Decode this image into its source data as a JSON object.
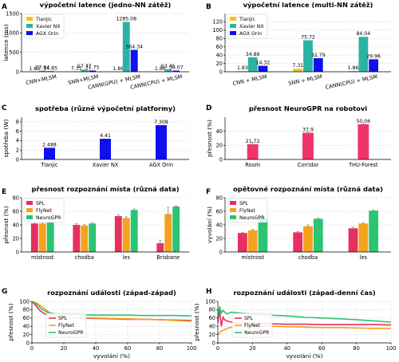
{
  "colors": {
    "tianjic": "#f5c518",
    "xavier": "#2ab3a3",
    "orin": "#1010ee",
    "spl": "#e8305f",
    "flynet": "#f5a21c",
    "neurogpr": "#2bc472",
    "neuro_bar": "#f0336a",
    "errorbar": "#888888"
  },
  "chart_data": [
    {
      "id": "A",
      "type": "bar",
      "panel_label": "A",
      "title": "výpočetní latence (jedno-NN zátěž)",
      "ylabel": "latence (ms)",
      "ylim": [
        0,
        1500
      ],
      "yticks": [
        0,
        500,
        1000,
        1500
      ],
      "categories": [
        "CNN+MLSM",
        "SNN+MLSM",
        "CANN(GPU) + MLSM",
        "CANN(CPU) + MLSM"
      ],
      "series": [
        {
          "name": "Tianjic",
          "color_key": "tianjic",
          "values": [
            1.83,
            7.31,
            1.86,
            1.86
          ]
        },
        {
          "name": "Xavier NX",
          "color_key": "xavier",
          "values": [
            27.64,
            57.77,
            1285.08,
            63.45
          ]
        },
        {
          "name": "AGX Orin",
          "color_key": "orin",
          "values": [
            14.85,
            31.75,
            564.34,
            30.07
          ]
        }
      ],
      "value_labels": [
        [
          "1.83",
          "27.64",
          "14.85"
        ],
        [
          "7.31",
          "57.77",
          "31.75"
        ],
        [
          "1.86",
          "1285.08",
          "564.34"
        ],
        [
          "1.86",
          "63.45",
          "30.07"
        ]
      ],
      "legend": "top-left",
      "grid": true
    },
    {
      "id": "B",
      "type": "bar",
      "panel_label": "B",
      "title": "výpočetní latence (multi-NN zátěž)",
      "ylabel": "",
      "ylim": [
        0,
        140
      ],
      "yticks": [
        0,
        20,
        40,
        60,
        80,
        100,
        120
      ],
      "categories": [
        "CNN + MLSM",
        "SNN + MLSM",
        "CANN(CPU) + MLSM"
      ],
      "series": [
        {
          "name": "Tianjic",
          "color_key": "tianjic",
          "values": [
            1.83,
            7.31,
            1.86
          ]
        },
        {
          "name": "Xavier NX",
          "color_key": "xavier",
          "values": [
            34.86,
            75.72,
            84.04
          ]
        },
        {
          "name": "AGX Orin",
          "color_key": "orin",
          "values": [
            14.32,
            32.79,
            29.96
          ]
        }
      ],
      "value_labels": [
        [
          "1.83",
          "34.86",
          "14.32"
        ],
        [
          "7.31",
          "75.72",
          "32.79"
        ],
        [
          "1.86",
          "84.04",
          "29.96"
        ]
      ],
      "legend": "top-left",
      "grid": true
    },
    {
      "id": "C",
      "type": "bar",
      "panel_label": "C",
      "title": "spotřeba (různé výpočetní platformy)",
      "ylabel": "spotřeba (W)",
      "ylim": [
        0,
        9
      ],
      "yticks": [
        0,
        2,
        4,
        6,
        8
      ],
      "categories": [
        "Tianjic",
        "Xavier NX",
        "AGX Orin"
      ],
      "values": [
        2.488,
        4.41,
        7.308
      ],
      "value_labels": [
        "2.488",
        "4.41",
        "7.308"
      ],
      "color_key": "orin",
      "grid": true
    },
    {
      "id": "D",
      "type": "bar",
      "panel_label": "D",
      "title": "přesnost NeuroGPR na robotovi",
      "ylabel": "přesnost (%)",
      "ylim": [
        0,
        60
      ],
      "yticks": [
        0,
        20,
        40
      ],
      "categories": [
        "Room",
        "Corridor",
        "THU-Forest"
      ],
      "values": [
        21.72,
        37.9,
        50.06
      ],
      "value_labels": [
        "21.72",
        "37.9",
        "50.06"
      ],
      "errors": [
        2.0,
        1.2,
        1.0
      ],
      "color_key": "neuro_bar",
      "grid": true
    },
    {
      "id": "E",
      "type": "bar",
      "panel_label": "E",
      "title": "přesnost rozpoznání místa (různá data)",
      "ylabel": "přesnost (%)",
      "ylim": [
        0,
        80
      ],
      "yticks": [
        0,
        20,
        40,
        60,
        80
      ],
      "categories": [
        "místnost",
        "chodba",
        "les",
        "Brisbane"
      ],
      "series": [
        {
          "name": "SPL",
          "color_key": "spl",
          "values": [
            42,
            40,
            53,
            13
          ],
          "errors": [
            1.5,
            2,
            2,
            4
          ]
        },
        {
          "name": "FlyNet",
          "color_key": "flynet",
          "values": [
            42,
            39,
            50,
            56
          ],
          "errors": [
            1.5,
            1.5,
            2,
            10
          ]
        },
        {
          "name": "NeuroGPR",
          "color_key": "neurogpr",
          "values": [
            44,
            42,
            62,
            67
          ],
          "errors": [
            1.5,
            1.5,
            1.5,
            1
          ]
        }
      ],
      "legend": "top-left",
      "grid": true
    },
    {
      "id": "F",
      "type": "bar",
      "panel_label": "F",
      "title": "opětovné rozpoznání místa (různá data)",
      "ylabel": "vyvolání (%)",
      "ylim": [
        0,
        80
      ],
      "yticks": [
        0,
        20,
        40,
        60,
        80
      ],
      "categories": [
        "místnost",
        "chodba",
        "les"
      ],
      "series": [
        {
          "name": "SPL",
          "color_key": "spl",
          "values": [
            28,
            29,
            35
          ],
          "errors": [
            1,
            1,
            1.5
          ]
        },
        {
          "name": "FlyNet",
          "color_key": "flynet",
          "values": [
            32,
            38,
            42
          ],
          "errors": [
            1.5,
            2,
            1
          ]
        },
        {
          "name": "NeuroGPR",
          "color_key": "neurogpr",
          "values": [
            51,
            49,
            61
          ],
          "errors": [
            2,
            1,
            1
          ]
        }
      ],
      "legend": "top-left",
      "grid": true
    },
    {
      "id": "G",
      "type": "line",
      "panel_label": "G",
      "title": "rozpoznání události (západ-západ)",
      "xlabel": "vyvolání (%)",
      "ylabel": "přesnost (%)",
      "xlim": [
        0,
        100
      ],
      "ylim": [
        0,
        100
      ],
      "xticks": [
        0,
        20,
        40,
        60,
        80,
        100
      ],
      "yticks": [
        0,
        20,
        40,
        60,
        80,
        100
      ],
      "series": [
        {
          "name": "SPL",
          "color_key": "spl",
          "x": [
            0,
            2,
            5,
            8,
            10,
            15,
            20,
            30,
            40,
            50,
            60,
            70,
            80,
            90,
            100
          ],
          "y": [
            100,
            92,
            78,
            70,
            68,
            64,
            62,
            60,
            59,
            58,
            57,
            57,
            56,
            55,
            54
          ]
        },
        {
          "name": "FlyNet",
          "color_key": "flynet",
          "x": [
            0,
            3,
            6,
            10,
            14,
            20,
            30,
            40,
            50,
            60,
            70,
            80,
            90,
            100
          ],
          "y": [
            100,
            96,
            88,
            76,
            66,
            62,
            61,
            60,
            59,
            58,
            57,
            56,
            54,
            52
          ]
        },
        {
          "name": "NeuroGPR",
          "color_key": "neurogpr",
          "x": [
            0,
            3,
            6,
            10,
            15,
            20,
            30,
            40,
            50,
            60,
            70,
            80,
            90,
            100
          ],
          "y": [
            100,
            93,
            82,
            73,
            70,
            69,
            68,
            67,
            67,
            67,
            66,
            66,
            66,
            65
          ]
        }
      ],
      "legend": "center-left",
      "grid": true
    },
    {
      "id": "H",
      "type": "line",
      "panel_label": "H",
      "title": "rozpoznání události (západ-denní čas)",
      "xlabel": "vyvolání (%)",
      "ylabel": "přesnost (%)",
      "xlim": [
        0,
        100
      ],
      "ylim": [
        0,
        100
      ],
      "xticks": [
        0,
        20,
        40,
        60,
        80,
        100
      ],
      "yticks": [
        0,
        20,
        40,
        60,
        80,
        100
      ],
      "series": [
        {
          "name": "SPL",
          "color_key": "spl",
          "x": [
            0,
            1,
            2,
            3,
            4,
            6,
            8,
            10,
            20,
            30,
            40,
            50,
            60,
            70,
            80,
            90,
            100
          ],
          "y": [
            50,
            80,
            40,
            62,
            55,
            52,
            50,
            48,
            47,
            46,
            45,
            45,
            44,
            44,
            44,
            44,
            43
          ]
        },
        {
          "name": "FlyNet",
          "color_key": "flynet",
          "x": [
            0,
            2,
            4,
            6,
            10,
            20,
            30,
            40,
            50,
            60,
            70,
            80,
            90,
            100
          ],
          "y": [
            20,
            28,
            32,
            36,
            40,
            41,
            40,
            39,
            38,
            37,
            37,
            36,
            35,
            35
          ]
        },
        {
          "name": "NeuroGPR",
          "color_key": "neurogpr",
          "x": [
            0,
            1,
            2,
            3,
            5,
            8,
            10,
            15,
            20,
            30,
            40,
            50,
            60,
            70,
            80,
            90,
            100
          ],
          "y": [
            60,
            88,
            72,
            78,
            70,
            74,
            73,
            71,
            69,
            67,
            65,
            62,
            60,
            58,
            56,
            53,
            50
          ]
        }
      ],
      "legend": "center-left",
      "grid": true
    }
  ]
}
